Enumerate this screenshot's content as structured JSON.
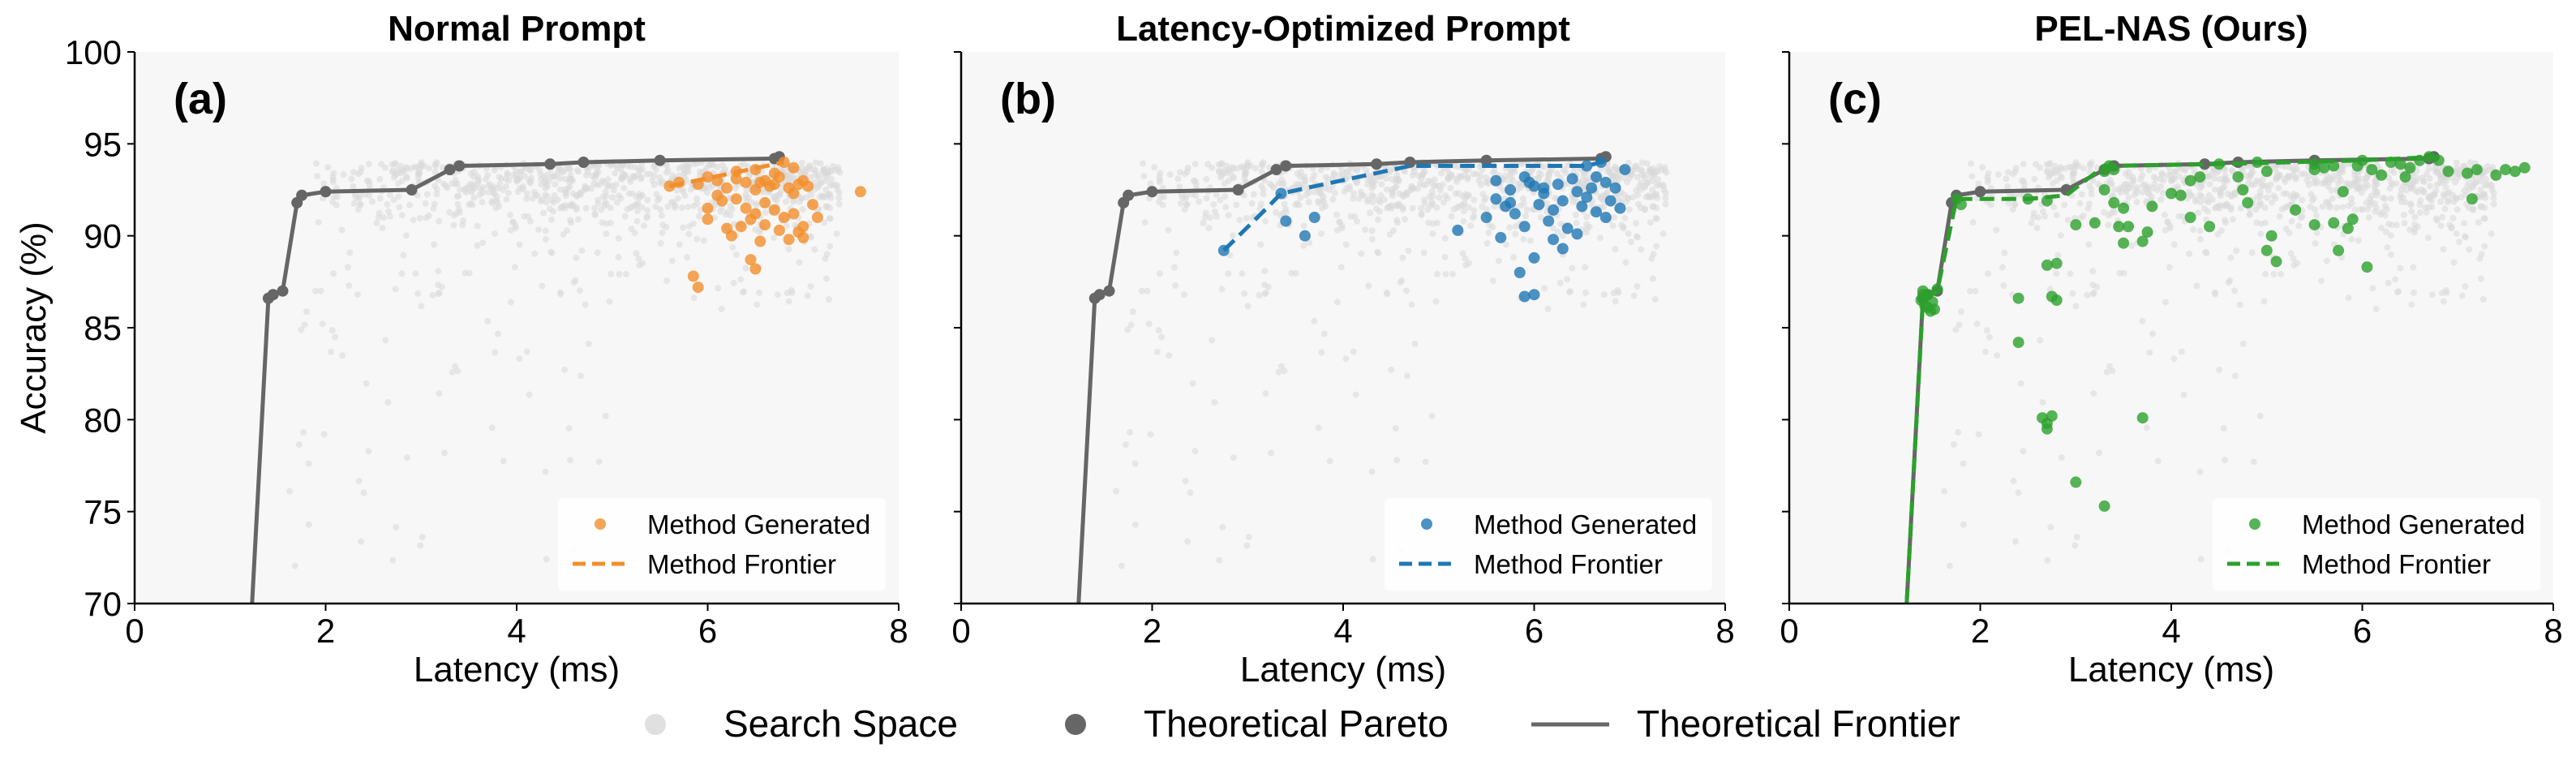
{
  "chart_data": [
    {
      "type": "scatter",
      "panel_label": "(a)",
      "title": "Normal Prompt",
      "xlabel": "Latency (ms)",
      "ylabel": "Accuracy (%)",
      "xlim": [
        0,
        8
      ],
      "ylim": [
        70,
        100
      ],
      "xticks": [
        "0",
        "2",
        "4",
        "6",
        "8"
      ],
      "yticks": [
        "70",
        "75",
        "80",
        "85",
        "90",
        "95",
        "100"
      ],
      "legend_position": "lower-right",
      "legend": [
        "Method Generated",
        "Method Frontier"
      ],
      "series_color": "#f28e2b",
      "method_frontier": [
        [
          5.6,
          92.7
        ],
        [
          6.8,
          94.0
        ]
      ],
      "method_points": [
        [
          5.6,
          92.7
        ],
        [
          5.7,
          92.9
        ],
        [
          5.9,
          92.8
        ],
        [
          6.0,
          93.2
        ],
        [
          6.1,
          93.0
        ],
        [
          6.2,
          92.6
        ],
        [
          6.3,
          93.1
        ],
        [
          6.4,
          92.9
        ],
        [
          6.5,
          92.5
        ],
        [
          6.55,
          92.9
        ],
        [
          6.6,
          93.0
        ],
        [
          6.65,
          92.7
        ],
        [
          6.7,
          92.8
        ],
        [
          6.75,
          93.2
        ],
        [
          6.8,
          94.0
        ],
        [
          6.85,
          92.6
        ],
        [
          6.9,
          92.3
        ],
        [
          6.95,
          92.8
        ],
        [
          7.0,
          93.0
        ],
        [
          7.05,
          92.7
        ],
        [
          7.1,
          91.7
        ],
        [
          7.6,
          92.4
        ],
        [
          6.1,
          92.2
        ],
        [
          6.3,
          92.0
        ],
        [
          6.4,
          91.5
        ],
        [
          6.5,
          91.2
        ],
        [
          6.6,
          91.8
        ],
        [
          6.7,
          91.4
        ],
        [
          6.8,
          91.0
        ],
        [
          6.9,
          91.2
        ],
        [
          6.0,
          90.9
        ],
        [
          6.2,
          90.4
        ],
        [
          6.35,
          90.5
        ],
        [
          6.6,
          90.6
        ],
        [
          6.75,
          90.3
        ],
        [
          6.95,
          90.2
        ],
        [
          7.0,
          90.5
        ],
        [
          7.15,
          91.0
        ],
        [
          6.0,
          91.5
        ],
        [
          6.15,
          91.9
        ],
        [
          6.45,
          90.9
        ],
        [
          6.55,
          89.7
        ],
        [
          6.45,
          88.7
        ],
        [
          6.5,
          88.2
        ],
        [
          5.85,
          87.8
        ],
        [
          5.9,
          87.2
        ],
        [
          6.25,
          90.0
        ],
        [
          6.85,
          89.8
        ],
        [
          7.0,
          89.9
        ],
        [
          6.3,
          93.5
        ],
        [
          6.5,
          93.6
        ],
        [
          6.7,
          93.4
        ],
        [
          6.9,
          93.7
        ]
      ]
    },
    {
      "type": "scatter",
      "panel_label": "(b)",
      "title": "Latency-Optimized Prompt",
      "xlabel": "Latency (ms)",
      "ylabel": "",
      "xlim": [
        0,
        8
      ],
      "ylim": [
        70,
        100
      ],
      "xticks": [
        "0",
        "2",
        "4",
        "6",
        "8"
      ],
      "yticks": [],
      "legend_position": "lower-right",
      "legend": [
        "Method Generated",
        "Method Frontier"
      ],
      "series_color": "#1f77b4",
      "method_frontier": [
        [
          2.75,
          89.2
        ],
        [
          3.2,
          91.5
        ],
        [
          3.35,
          92.3
        ],
        [
          4.7,
          93.8
        ],
        [
          6.55,
          93.8
        ],
        [
          6.7,
          94.0
        ]
      ],
      "method_points": [
        [
          2.75,
          89.2
        ],
        [
          3.35,
          92.3
        ],
        [
          3.4,
          90.8
        ],
        [
          3.6,
          90.0
        ],
        [
          3.7,
          91.0
        ],
        [
          5.2,
          90.3
        ],
        [
          5.5,
          91.0
        ],
        [
          5.6,
          92.0
        ],
        [
          5.65,
          89.9
        ],
        [
          5.7,
          91.6
        ],
        [
          5.75,
          92.5
        ],
        [
          5.8,
          91.2
        ],
        [
          5.85,
          88.0
        ],
        [
          5.9,
          90.5
        ],
        [
          5.95,
          92.9
        ],
        [
          6.0,
          86.8
        ],
        [
          6.05,
          91.7
        ],
        [
          6.1,
          92.3
        ],
        [
          6.15,
          90.8
        ],
        [
          6.2,
          89.8
        ],
        [
          6.25,
          92.8
        ],
        [
          6.3,
          91.9
        ],
        [
          6.35,
          90.4
        ],
        [
          6.4,
          93.1
        ],
        [
          6.45,
          92.4
        ],
        [
          6.5,
          91.6
        ],
        [
          6.55,
          93.8
        ],
        [
          6.6,
          92.6
        ],
        [
          6.65,
          91.3
        ],
        [
          6.7,
          94.0
        ],
        [
          6.75,
          92.9
        ],
        [
          6.8,
          91.9
        ],
        [
          6.85,
          92.6
        ],
        [
          6.9,
          91.5
        ],
        [
          6.95,
          93.6
        ],
        [
          5.9,
          93.2
        ],
        [
          6.0,
          92.7
        ],
        [
          6.2,
          91.4
        ],
        [
          6.3,
          89.3
        ],
        [
          6.45,
          90.1
        ],
        [
          6.0,
          88.8
        ],
        [
          5.9,
          86.7
        ],
        [
          6.1,
          92.6
        ],
        [
          6.55,
          92.1
        ],
        [
          6.65,
          93.2
        ],
        [
          6.75,
          91.0
        ],
        [
          5.75,
          91.8
        ],
        [
          5.6,
          93.0
        ]
      ]
    },
    {
      "type": "scatter",
      "panel_label": "(c)",
      "title": "PEL-NAS (Ours)",
      "xlabel": "Latency (ms)",
      "ylabel": "",
      "xlim": [
        0,
        8
      ],
      "ylim": [
        70,
        100
      ],
      "xticks": [
        "0",
        "2",
        "4",
        "6",
        "8"
      ],
      "yticks": [],
      "legend_position": "lower-right",
      "legend": [
        "Method Generated",
        "Method Frontier"
      ],
      "series_color": "#2ca02c",
      "method_frontier": [
        [
          1.23,
          70.0
        ],
        [
          1.4,
          86.5
        ],
        [
          1.55,
          87.0
        ],
        [
          1.75,
          92.0
        ],
        [
          2.5,
          92.0
        ],
        [
          2.9,
          92.2
        ],
        [
          3.3,
          93.8
        ],
        [
          4.5,
          93.9
        ],
        [
          6.0,
          94.1
        ],
        [
          6.8,
          94.3
        ]
      ],
      "method_points": [
        [
          1.38,
          86.5
        ],
        [
          1.4,
          87.0
        ],
        [
          1.42,
          86.2
        ],
        [
          1.45,
          86.8
        ],
        [
          1.48,
          85.9
        ],
        [
          1.5,
          86.4
        ],
        [
          1.52,
          86.0
        ],
        [
          1.55,
          87.1
        ],
        [
          1.4,
          86.8
        ],
        [
          1.45,
          86.1
        ],
        [
          1.75,
          92.0
        ],
        [
          1.8,
          91.7
        ],
        [
          2.5,
          92.0
        ],
        [
          2.7,
          91.9
        ],
        [
          2.4,
          86.6
        ],
        [
          2.4,
          84.2
        ],
        [
          2.7,
          88.4
        ],
        [
          2.8,
          88.5
        ],
        [
          2.75,
          86.7
        ],
        [
          2.8,
          86.5
        ],
        [
          2.65,
          80.1
        ],
        [
          2.7,
          79.8
        ],
        [
          2.75,
          80.2
        ],
        [
          2.7,
          79.5
        ],
        [
          3.0,
          76.6
        ],
        [
          3.0,
          90.6
        ],
        [
          3.2,
          90.7
        ],
        [
          3.3,
          92.5
        ],
        [
          3.3,
          93.5
        ],
        [
          3.35,
          93.8
        ],
        [
          3.4,
          93.6
        ],
        [
          3.4,
          91.8
        ],
        [
          3.5,
          91.5
        ],
        [
          3.45,
          90.5
        ],
        [
          3.5,
          89.6
        ],
        [
          3.55,
          90.5
        ],
        [
          3.3,
          75.3
        ],
        [
          3.7,
          80.1
        ],
        [
          3.7,
          89.7
        ],
        [
          3.75,
          90.2
        ],
        [
          3.8,
          91.6
        ],
        [
          4.1,
          92.2
        ],
        [
          4.2,
          93.0
        ],
        [
          4.3,
          93.2
        ],
        [
          4.2,
          91.0
        ],
        [
          4.4,
          90.5
        ],
        [
          4.5,
          93.9
        ],
        [
          4.7,
          93.2
        ],
        [
          4.75,
          92.5
        ],
        [
          4.8,
          91.8
        ],
        [
          4.9,
          94.0
        ],
        [
          5.0,
          93.5
        ],
        [
          5.0,
          89.2
        ],
        [
          5.1,
          88.6
        ],
        [
          5.05,
          90.0
        ],
        [
          5.3,
          91.4
        ],
        [
          5.5,
          93.9
        ],
        [
          5.5,
          90.6
        ],
        [
          5.6,
          93.7
        ],
        [
          5.7,
          93.8
        ],
        [
          5.7,
          90.7
        ],
        [
          5.75,
          89.2
        ],
        [
          5.85,
          90.4
        ],
        [
          5.8,
          92.4
        ],
        [
          5.9,
          90.9
        ],
        [
          5.95,
          93.8
        ],
        [
          6.0,
          94.1
        ],
        [
          6.05,
          88.3
        ],
        [
          6.1,
          93.6
        ],
        [
          6.2,
          93.3
        ],
        [
          6.3,
          94.0
        ],
        [
          6.4,
          93.9
        ],
        [
          6.5,
          93.7
        ],
        [
          6.6,
          94.1
        ],
        [
          6.7,
          94.3
        ],
        [
          6.8,
          94.1
        ],
        [
          6.45,
          93.2
        ],
        [
          6.9,
          93.5
        ],
        [
          7.1,
          93.4
        ],
        [
          7.2,
          93.6
        ],
        [
          7.4,
          93.3
        ],
        [
          7.5,
          93.6
        ],
        [
          7.6,
          93.5
        ],
        [
          7.7,
          93.7
        ],
        [
          7.15,
          92.0
        ],
        [
          5.5,
          93.6
        ],
        [
          4.0,
          92.3
        ]
      ]
    }
  ],
  "theoretical_frontier": [
    [
      1.23,
      70.0
    ],
    [
      1.4,
      86.6
    ],
    [
      1.45,
      86.8
    ],
    [
      1.55,
      87.0
    ],
    [
      1.7,
      91.8
    ],
    [
      1.75,
      92.2
    ],
    [
      2.0,
      92.4
    ],
    [
      2.9,
      92.5
    ],
    [
      3.3,
      93.6
    ],
    [
      3.4,
      93.8
    ],
    [
      4.35,
      93.9
    ],
    [
      4.7,
      94.0
    ],
    [
      5.5,
      94.1
    ],
    [
      6.7,
      94.2
    ],
    [
      6.75,
      94.3
    ]
  ],
  "bottom_legend": {
    "search_space": "Search Space",
    "pareto": "Theoretical Pareto",
    "frontier": "Theoretical Frontier"
  },
  "colors": {
    "frontier": "#666666",
    "panel_bg": "#f7f7f7",
    "search_space": "#d9d9d9"
  }
}
